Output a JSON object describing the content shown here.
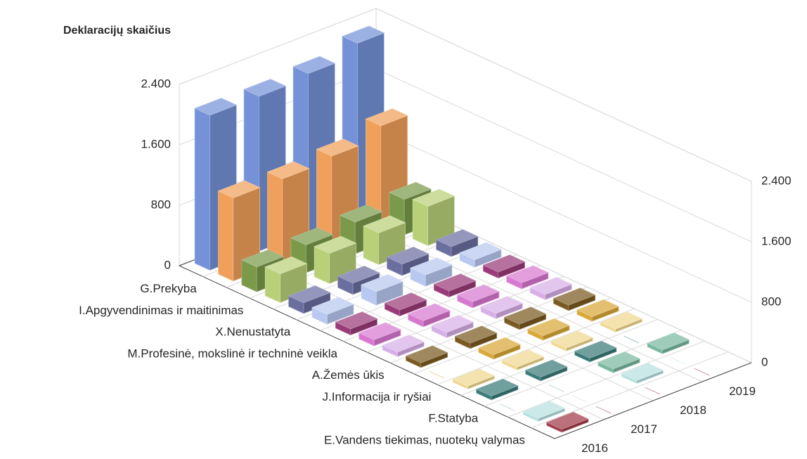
{
  "chart_data": {
    "type": "bar3d",
    "title": "Deklaracijų skaičius",
    "categories": [
      "G.Prekyba",
      null,
      "I.Apgyvendinimas ir maitinimas",
      null,
      "X.Nenustatyta",
      null,
      "M.Profesinė, mokslinė ir techninė veikla",
      null,
      "A.Žemės ūkis",
      null,
      "J.Informacija ir ryšiai",
      null,
      "F.Statyba",
      null,
      "E.Vandens tiekimas, nuotekų valymas",
      null
    ],
    "colors": [
      "#7592d8",
      "#f0a05a",
      "#7a9a4a",
      "#b8d078",
      "#6a6fa0",
      "#b8c8f0",
      "#9a3a78",
      "#d878d0",
      "#d8b0e8",
      "#7a5a20",
      "#d8a838",
      "#f0d890",
      "#3a7a78",
      "#7ab8a0",
      "#b8e0e0",
      "#a03a48"
    ],
    "series": [
      {
        "name": "2016",
        "values": [
          2050,
          1100,
          330,
          380,
          140,
          130,
          80,
          80,
          60,
          60,
          0,
          40,
          50,
          0,
          40,
          40
        ]
      },
      {
        "name": "2017",
        "values": [
          2050,
          1100,
          370,
          400,
          150,
          180,
          80,
          80,
          70,
          70,
          60,
          40,
          50,
          0,
          0,
          0
        ]
      },
      {
        "name": "2018",
        "values": [
          2100,
          1150,
          420,
          420,
          150,
          150,
          80,
          80,
          70,
          70,
          60,
          40,
          50,
          50,
          40,
          0
        ]
      },
      {
        "name": "2019",
        "values": [
          2250,
          1300,
          470,
          520,
          130,
          100,
          80,
          80,
          70,
          70,
          60,
          40,
          0,
          50,
          0,
          0
        ]
      }
    ],
    "ylim": [
      0,
      2400
    ],
    "yticks": [
      0,
      800,
      {
        "value": 1600,
        "label": "1.600"
      },
      {
        "value": 2400,
        "label": "2.400"
      }
    ]
  }
}
